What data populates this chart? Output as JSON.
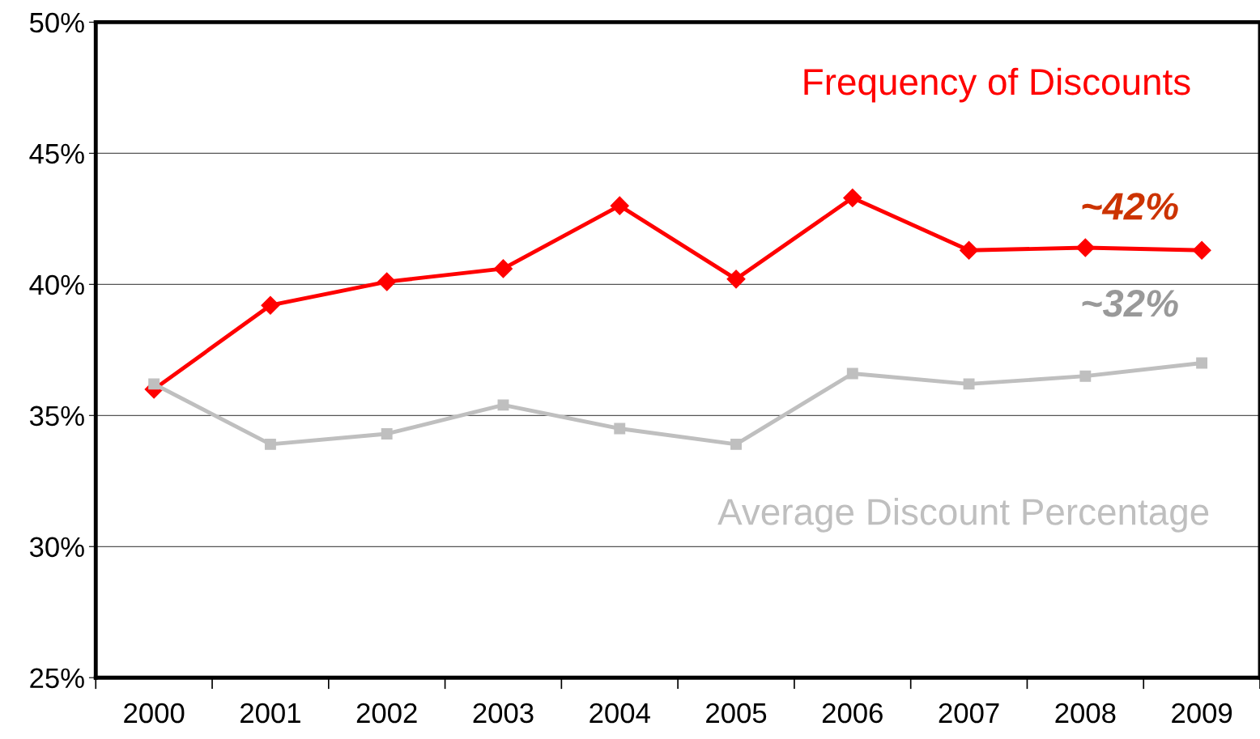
{
  "chart_data": {
    "type": "line",
    "categories": [
      "2000",
      "2001",
      "2002",
      "2003",
      "2004",
      "2005",
      "2006",
      "2007",
      "2008",
      "2009"
    ],
    "series": [
      {
        "name": "Frequency of Discounts",
        "color": "#ff0000",
        "marker": "diamond",
        "values": [
          36.0,
          39.2,
          40.1,
          40.6,
          43.0,
          40.2,
          43.3,
          41.3,
          41.4,
          41.3
        ]
      },
      {
        "name": "Average Discount Percentage",
        "color": "#bfbfbf",
        "marker": "square",
        "values": [
          36.2,
          33.9,
          34.3,
          35.4,
          34.5,
          33.9,
          36.6,
          36.2,
          36.5,
          37.0
        ]
      }
    ],
    "annotations": [
      "~42%",
      "~32%"
    ],
    "ylim": [
      25,
      50
    ],
    "yticks": [
      {
        "value": 25,
        "label": "25%"
      },
      {
        "value": 30,
        "label": "30%"
      },
      {
        "value": 35,
        "label": "35%"
      },
      {
        "value": 40,
        "label": "40%"
      },
      {
        "value": 45,
        "label": "45%"
      },
      {
        "value": 50,
        "label": "50%"
      }
    ],
    "grid": "y",
    "legend": false
  }
}
